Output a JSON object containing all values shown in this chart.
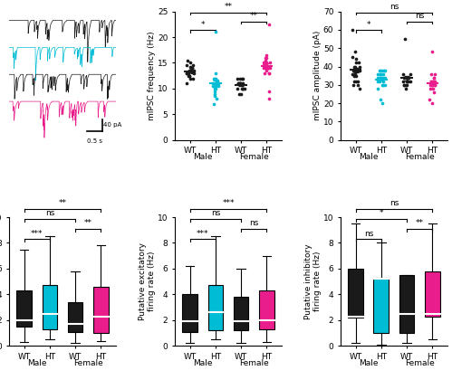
{
  "colors": {
    "wt_male": "#1a1a1a",
    "ht_male": "#00bcd4",
    "wt_female": "#1a1a1a",
    "ht_female": "#e91e8c"
  },
  "freq_data": {
    "wt_male": [
      13.0,
      13.2,
      12.5,
      14.0,
      13.5,
      14.2,
      15.0,
      14.5,
      13.0,
      12.0,
      13.5,
      14.0,
      12.5,
      11.0,
      13.0,
      14.5,
      15.5,
      13.5,
      12.0,
      13.0,
      14.0,
      13.0,
      12.5,
      13.5
    ],
    "ht_male": [
      11.0,
      10.5,
      21.0,
      11.5,
      8.0,
      12.0,
      11.0,
      10.0,
      9.5,
      11.0,
      12.0,
      10.5,
      11.0,
      7.0,
      11.5,
      12.0,
      13.0,
      10.0,
      11.0,
      9.0,
      10.5,
      11.0,
      8.5,
      11.0
    ],
    "wt_female": [
      11.0,
      10.0,
      12.0,
      11.0,
      10.0,
      9.0,
      11.0,
      12.0,
      11.0,
      10.0,
      11.0,
      12.0,
      10.0,
      11.0,
      10.0,
      11.0,
      12.0,
      9.0
    ],
    "ht_female": [
      14.0,
      15.0,
      22.5,
      14.5,
      13.0,
      14.0,
      15.5,
      16.0,
      14.0,
      13.5,
      15.0,
      16.0,
      14.0,
      13.0,
      14.5,
      15.0,
      16.5,
      14.0,
      13.0,
      14.0,
      15.0,
      8.0,
      9.5
    ]
  },
  "amp_data": {
    "wt_male": [
      38,
      40,
      42,
      35,
      38,
      45,
      48,
      36,
      32,
      38,
      42,
      44,
      30,
      32,
      38,
      40,
      35,
      38,
      32,
      30,
      60,
      28,
      38,
      40,
      36
    ],
    "ht_male": [
      34,
      36,
      38,
      22,
      30,
      34,
      36,
      38,
      32,
      34,
      38,
      34,
      32,
      30,
      20,
      36,
      38,
      34,
      32,
      34,
      36,
      38,
      30,
      28
    ],
    "wt_female": [
      34,
      30,
      32,
      55,
      34,
      32,
      30,
      34,
      36,
      32,
      30,
      34,
      32,
      30,
      34,
      36,
      32,
      28
    ],
    "ht_female": [
      20,
      22,
      30,
      32,
      34,
      36,
      32,
      30,
      28,
      26,
      30,
      32,
      34,
      36,
      30,
      28,
      48,
      30,
      32,
      30
    ]
  },
  "box_total": {
    "wt_male": {
      "q1": 1.5,
      "median": 2.0,
      "q3": 4.3,
      "whisker_low": 0.3,
      "whisker_high": 7.5
    },
    "ht_male": {
      "q1": 1.3,
      "median": 2.5,
      "q3": 4.7,
      "whisker_low": 0.5,
      "whisker_high": 8.5
    },
    "wt_female": {
      "q1": 1.1,
      "median": 1.7,
      "q3": 3.4,
      "whisker_low": 0.2,
      "whisker_high": 5.8
    },
    "ht_female": {
      "q1": 1.0,
      "median": 2.3,
      "q3": 4.6,
      "whisker_low": 0.4,
      "whisker_high": 7.8
    }
  },
  "box_excit": {
    "wt_male": {
      "q1": 1.1,
      "median": 1.9,
      "q3": 4.0,
      "whisker_low": 0.2,
      "whisker_high": 6.2
    },
    "ht_male": {
      "q1": 1.2,
      "median": 2.6,
      "q3": 4.7,
      "whisker_low": 0.5,
      "whisker_high": 8.5
    },
    "wt_female": {
      "q1": 1.2,
      "median": 1.9,
      "q3": 3.8,
      "whisker_low": 0.2,
      "whisker_high": 6.0
    },
    "ht_female": {
      "q1": 1.3,
      "median": 2.0,
      "q3": 4.3,
      "whisker_low": 0.3,
      "whisker_high": 7.0
    }
  },
  "box_inhib": {
    "wt_male": {
      "q1": 2.2,
      "median": 2.3,
      "q3": 6.0,
      "whisker_low": 0.2,
      "whisker_high": 9.5
    },
    "ht_male": {
      "q1": 1.0,
      "median": 5.2,
      "q3": 5.3,
      "whisker_low": 0.1,
      "whisker_high": 8.0
    },
    "wt_female": {
      "q1": 1.0,
      "median": 2.5,
      "q3": 5.5,
      "whisker_low": 0.2,
      "whisker_high": 5.5
    },
    "ht_female": {
      "q1": 2.3,
      "median": 2.5,
      "q3": 5.8,
      "whisker_low": 0.5,
      "whisker_high": 9.5
    }
  },
  "trace_colors": [
    "#1a1a1a",
    "#00bcd4",
    "#1a1a1a",
    "#e91e8c"
  ],
  "sig_freq": [
    [
      "*",
      "WT-HT male"
    ],
    [
      "**",
      "WT-HT female"
    ],
    [
      "**",
      "Male-Female WT"
    ]
  ],
  "sig_amp": [
    [
      "*",
      "WT-HT male"
    ],
    [
      "ns",
      "WT-HT female"
    ],
    [
      "ns",
      "Male-Female WT"
    ]
  ],
  "sig_total": [
    [
      "***",
      "WT-HT male"
    ],
    [
      "**",
      "WT-HT female"
    ],
    [
      "ns",
      "WT-WT"
    ],
    [
      "**",
      "WT-HT cross"
    ]
  ],
  "sig_excit": [
    [
      "***",
      "WT-HT male"
    ],
    [
      "ns",
      "WT-HT female"
    ],
    [
      "ns",
      "WT-WT"
    ],
    [
      "***",
      "WT-HT cross"
    ]
  ],
  "sig_inhib": [
    [
      "ns",
      "WT-HT male"
    ],
    [
      "**",
      "WT-HT female"
    ],
    [
      "*",
      "WT-WT"
    ],
    [
      "ns",
      "WT-HT cross"
    ]
  ]
}
